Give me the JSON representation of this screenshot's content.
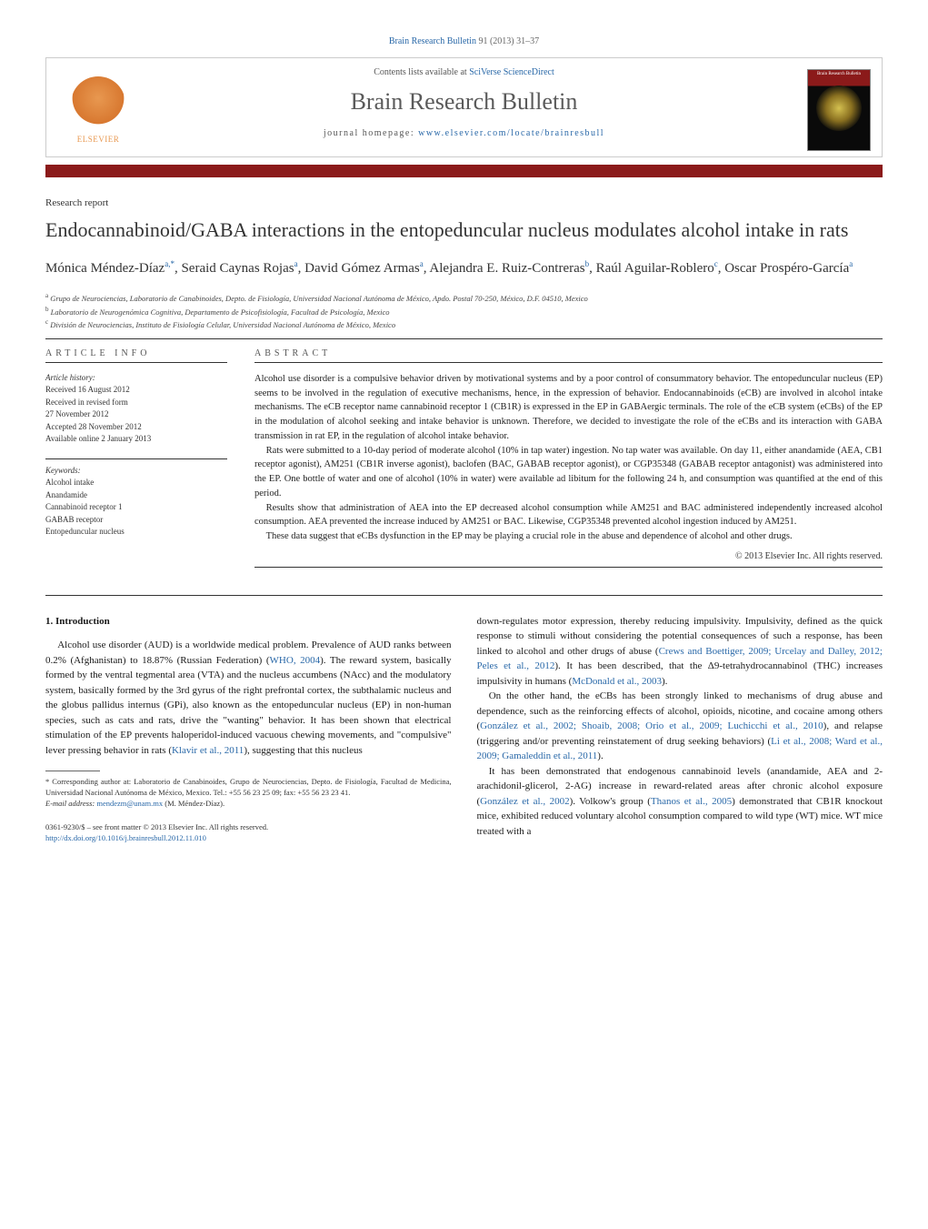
{
  "top_citation": {
    "journal_link": "Brain Research Bulletin",
    "citation_rest": " 91 (2013) 31–37"
  },
  "header": {
    "elsevier_label": "ELSEVIER",
    "contents_prefix": "Contents lists available at ",
    "contents_link": "SciVerse ScienceDirect",
    "journal_name": "Brain Research Bulletin",
    "homepage_prefix": "journal homepage: ",
    "homepage_link": "www.elsevier.com/locate/brainresbull",
    "cover_title": "Brain Research Bulletin"
  },
  "article_type": "Research report",
  "title": "Endocannabinoid/GABA interactions in the entopeduncular nucleus modulates alcohol intake in rats",
  "authors_html": "Mónica Méndez-Díaz<sup>a,*</sup>, Seraid Caynas Rojas<sup>a</sup>, David Gómez Armas<sup>a</sup>, Alejandra E. Ruiz-Contreras<sup>b</sup>, Raúl Aguilar-Roblero<sup>c</sup>, Oscar Prospéro-García<sup>a</sup>",
  "affiliations": [
    {
      "sup": "a",
      "text": "Grupo de Neurociencias, Laboratorio de Canabinoides, Depto. de Fisiología, Universidad Nacional Autónoma de México, Apdo. Postal 70-250, México, D.F. 04510, Mexico"
    },
    {
      "sup": "b",
      "text": "Laboratorio de Neurogenómica Cognitiva, Departamento de Psicofisiología, Facultad de Psicología, Mexico"
    },
    {
      "sup": "c",
      "text": "División de Neurociencias, Instituto de Fisiología Celular, Universidad Nacional Autónoma de México, Mexico"
    }
  ],
  "info": {
    "heading": "ARTICLE INFO",
    "history_label": "Article history:",
    "history": [
      "Received 16 August 2012",
      "Received in revised form",
      "27 November 2012",
      "Accepted 28 November 2012",
      "Available online 2 January 2013"
    ],
    "keywords_label": "Keywords:",
    "keywords": [
      "Alcohol intake",
      "Anandamide",
      "Cannabinoid receptor 1",
      "GABAB receptor",
      "Entopeduncular nucleus"
    ]
  },
  "abstract": {
    "heading": "ABSTRACT",
    "paragraphs": [
      "Alcohol use disorder is a compulsive behavior driven by motivational systems and by a poor control of consummatory behavior. The entopeduncular nucleus (EP) seems to be involved in the regulation of executive mechanisms, hence, in the expression of behavior. Endocannabinoids (eCB) are involved in alcohol intake mechanisms. The eCB receptor name cannabinoid receptor 1 (CB1R) is expressed in the EP in GABAergic terminals. The role of the eCB system (eCBs) of the EP in the modulation of alcohol seeking and intake behavior is unknown. Therefore, we decided to investigate the role of the eCBs and its interaction with GABA transmission in rat EP, in the regulation of alcohol intake behavior.",
      "Rats were submitted to a 10-day period of moderate alcohol (10% in tap water) ingestion. No tap water was available. On day 11, either anandamide (AEA, CB1 receptor agonist), AM251 (CB1R inverse agonist), baclofen (BAC, GABAB receptor agonist), or CGP35348 (GABAB receptor antagonist) was administered into the EP. One bottle of water and one of alcohol (10% in water) were available ad libitum for the following 24 h, and consumption was quantified at the end of this period.",
      "Results show that administration of AEA into the EP decreased alcohol consumption while AM251 and BAC administered independently increased alcohol consumption. AEA prevented the increase induced by AM251 or BAC. Likewise, CGP35348 prevented alcohol ingestion induced by AM251.",
      "These data suggest that eCBs dysfunction in the EP may be playing a crucial role in the abuse and dependence of alcohol and other drugs."
    ],
    "copyright": "© 2013 Elsevier Inc. All rights reserved."
  },
  "intro": {
    "heading": "1. Introduction",
    "col1_para1_pre": "Alcohol use disorder (AUD) is a worldwide medical problem. Prevalence of AUD ranks between 0.2% (Afghanistan) to 18.87% (Russian Federation) (",
    "col1_ref1": "WHO, 2004",
    "col1_para1_mid": "). The reward system, basically formed by the ventral tegmental area (VTA) and the nucleus accumbens (NAcc) and the modulatory system, basically formed by the 3rd gyrus of the right prefrontal cortex, the subthalamic nucleus and the globus pallidus internus (GPi), also known as the entopeduncular nucleus (EP) in non-human species, such as cats and rats, drive the \"wanting\" behavior. It has been shown that electrical stimulation of the EP prevents haloperidol-induced vacuous chewing movements, and \"compulsive\" lever pressing behavior in rats (",
    "col1_ref2": "Klavir et al., 2011",
    "col1_para1_post": "), suggesting that this nucleus",
    "col2_para1_pre": "down-regulates motor expression, thereby reducing impulsivity. Impulsivity, defined as the quick response to stimuli without considering the potential consequences of such a response, has been linked to alcohol and other drugs of abuse (",
    "col2_ref1": "Crews and Boettiger, 2009; Urcelay and Dalley, 2012; Peles et al., 2012",
    "col2_para1_mid": "). It has been described, that the Δ9-tetrahydrocannabinol (THC) increases impulsivity in humans (",
    "col2_ref2": "McDonald et al., 2003",
    "col2_para1_post": ").",
    "col2_para2_pre": "On the other hand, the eCBs has been strongly linked to mechanisms of drug abuse and dependence, such as the reinforcing effects of alcohol, opioids, nicotine, and cocaine among others (",
    "col2_ref3": "González et al., 2002; Shoaib, 2008; Orio et al., 2009; Luchicchi et al., 2010",
    "col2_para2_mid": "), and relapse (triggering and/or preventing reinstatement of drug seeking behaviors) (",
    "col2_ref4": "Li et al., 2008; Ward et al., 2009; Gamaleddin et al., 2011",
    "col2_para2_post": ").",
    "col2_para3_pre": "It has been demonstrated that endogenous cannabinoid levels (anandamide, AEA and 2-arachidonil-glicerol, 2-AG) increase in reward-related areas after chronic alcohol exposure (",
    "col2_ref5": "González et al., 2002",
    "col2_para3_mid": "). Volkow's group (",
    "col2_ref6": "Thanos et al., 2005",
    "col2_para3_post": ") demonstrated that CB1R knockout mice, exhibited reduced voluntary alcohol consumption compared to wild type (WT) mice. WT mice treated with a"
  },
  "footnotes": {
    "corr_marker": "*",
    "corr_text": " Corresponding author at: Laboratorio de Canabinoides, Grupo de Neurociencias, Depto. de Fisiología, Facultad de Medicina, Universidad Nacional Autónoma de México, Mexico. Tel.: +55 56 23 25 09; fax: +55 56 23 23 41.",
    "email_label": "E-mail address: ",
    "email": "mendezm@unam.mx",
    "email_post": " (M. Méndez-Díaz)."
  },
  "doi": {
    "line1": "0361-9230/$ – see front matter © 2013 Elsevier Inc. All rights reserved.",
    "link": "http://dx.doi.org/10.1016/j.brainresbull.2012.11.010"
  },
  "colors": {
    "link": "#2968a8",
    "bar": "#8b1a1a",
    "text": "#1a1a1a",
    "muted": "#555555"
  }
}
